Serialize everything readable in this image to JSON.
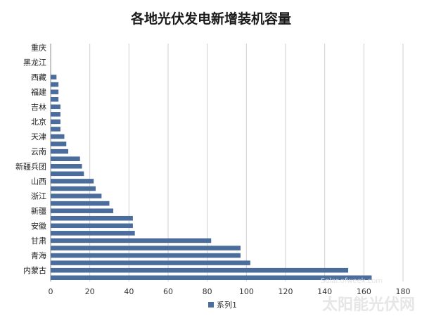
{
  "chart_data": {
    "type": "bar",
    "orientation": "horizontal",
    "title": "各地光伏发电新增装机容量",
    "xlabel": "",
    "ylabel": "",
    "xlim": [
      0,
      180
    ],
    "x_ticks": [
      0,
      20,
      40,
      60,
      80,
      100,
      120,
      140,
      160,
      180
    ],
    "grid": "vertical",
    "legend": {
      "position": "bottom",
      "entries": [
        "系列1"
      ]
    },
    "bar_color": "#4a6d9c",
    "categories": [
      "重庆",
      "",
      "黑龙江",
      "",
      "西藏",
      "",
      "福建",
      "",
      "吉林",
      "",
      "北京",
      "",
      "天津",
      "",
      "云南",
      "",
      "新疆兵团",
      "",
      "山西",
      "",
      "浙江",
      "",
      "新疆",
      "",
      "安徽",
      "",
      "甘肃",
      "",
      "青海",
      "",
      "内蒙古",
      ""
    ],
    "series": [
      {
        "name": "系列1",
        "values": [
          0,
          0,
          0,
          0,
          3,
          4,
          4,
          4,
          5,
          5,
          5,
          5,
          7,
          8,
          9,
          15,
          16,
          17,
          22,
          23,
          26,
          30,
          32,
          42,
          42,
          43,
          82,
          97,
          97,
          102,
          152,
          164
        ]
      }
    ]
  },
  "watermark": {
    "line1": "太阳能光伏网",
    "line2": "Solar.ofweek.com"
  }
}
